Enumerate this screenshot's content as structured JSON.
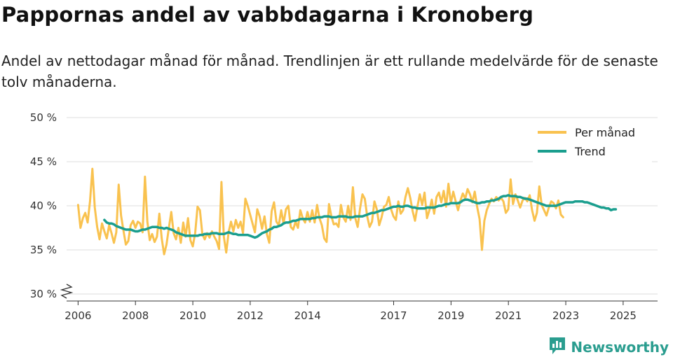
{
  "header": {
    "title": "Pappornas andel av vabbdagarna i Kronoberg",
    "subtitle": "Andel av nettodagar månad för månad. Trendlinjen är ett rullande medelvärde för de senaste tolv månaderna."
  },
  "brand": {
    "name": "Newsworthy",
    "icon": "newsworthy-logo-icon"
  },
  "colors": {
    "monthly": "#f9c24f",
    "trend": "#1a9e8e",
    "grid": "#dddddd",
    "axis": "#333333"
  },
  "chart_data": {
    "type": "line",
    "title": "Pappornas andel av vabbdagarna i Kronoberg",
    "ylabel": "",
    "xlabel": "",
    "ylim": [
      30,
      50
    ],
    "xlim": [
      2005.6,
      2026.2
    ],
    "y_ticks": [
      30,
      35,
      40,
      45,
      50
    ],
    "y_tick_labels": [
      "30 %",
      "35 %",
      "40 %",
      "45 %",
      "50 %"
    ],
    "x_ticks": [
      2006,
      2008,
      2010,
      2012,
      2014,
      2017,
      2019,
      2021,
      2023,
      2025
    ],
    "x_tick_labels": [
      "2006",
      "2008",
      "2010",
      "2012",
      "2014",
      "2017",
      "2019",
      "2021",
      "2023",
      "2025"
    ],
    "legend_position": "top-right",
    "series": [
      {
        "name": "Per månad",
        "x_start": 2006.0,
        "step": 0.0833,
        "values": [
          40.1,
          37.5,
          38.6,
          39.2,
          38.1,
          40.5,
          44.2,
          39.8,
          37.6,
          36.2,
          38.0,
          37.1,
          36.3,
          37.8,
          36.9,
          35.8,
          37.0,
          42.4,
          38.9,
          37.2,
          35.6,
          36.0,
          37.8,
          38.3,
          37.5,
          38.2,
          38.0,
          37.0,
          43.3,
          38.2,
          36.1,
          36.8,
          35.9,
          36.5,
          39.1,
          36.3,
          34.5,
          35.6,
          37.5,
          39.3,
          36.9,
          36.2,
          37.5,
          35.8,
          38.1,
          36.5,
          38.6,
          36.1,
          35.4,
          36.9,
          39.9,
          39.5,
          36.8,
          36.2,
          36.9,
          36.4,
          37.1,
          36.5,
          36.0,
          35.1,
          42.7,
          36.5,
          34.7,
          37.0,
          38.2,
          37.1,
          38.4,
          37.5,
          38.2,
          36.9,
          40.8,
          40.0,
          39.0,
          38.0,
          37.0,
          39.6,
          38.8,
          37.4,
          38.8,
          36.8,
          35.8,
          39.4,
          40.4,
          38.2,
          37.8,
          39.5,
          38.0,
          39.6,
          40.0,
          37.6,
          37.3,
          38.2,
          37.5,
          39.5,
          38.6,
          38.1,
          39.3,
          38.2,
          39.5,
          38.1,
          40.1,
          38.6,
          37.8,
          36.3,
          35.9,
          40.2,
          38.8,
          37.9,
          38.0,
          37.6,
          40.1,
          38.7,
          38.2,
          40.0,
          38.4,
          42.1,
          38.6,
          37.6,
          39.7,
          41.3,
          40.8,
          38.8,
          37.6,
          38.2,
          40.5,
          39.6,
          37.8,
          38.7,
          39.9,
          40.1,
          41.0,
          39.6,
          38.8,
          38.4,
          40.5,
          39.1,
          39.5,
          41.0,
          42.0,
          40.9,
          39.4,
          38.3,
          39.9,
          41.3,
          40.1,
          41.5,
          38.6,
          39.5,
          40.7,
          39.1,
          41.0,
          41.5,
          40.4,
          41.7,
          39.9,
          42.5,
          40.3,
          41.6,
          40.5,
          39.5,
          40.6,
          41.4,
          40.8,
          41.9,
          41.3,
          40.4,
          41.6,
          39.9,
          38.5,
          35.0,
          38.3,
          39.5,
          40.2,
          40.8,
          40.5,
          41.0,
          40.6,
          40.9,
          40.5,
          39.2,
          39.6,
          43.0,
          40.2,
          41.3,
          40.6,
          39.8,
          40.6,
          40.9,
          40.5,
          41.2,
          39.5,
          38.3,
          39.2,
          42.2,
          40.1,
          39.5,
          38.9,
          39.8,
          40.5,
          40.3,
          39.7,
          40.6,
          39.0,
          38.7
        ]
      },
      {
        "name": "Trend",
        "x_start": 2006.9167,
        "step": 0.0833,
        "values": [
          38.4,
          38.1,
          38.0,
          38.0,
          37.9,
          37.7,
          37.6,
          37.5,
          37.4,
          37.3,
          37.3,
          37.3,
          37.2,
          37.1,
          37.1,
          37.2,
          37.3,
          37.3,
          37.4,
          37.5,
          37.6,
          37.6,
          37.6,
          37.5,
          37.5,
          37.4,
          37.5,
          37.4,
          37.3,
          37.2,
          37.0,
          36.9,
          36.8,
          36.7,
          36.6,
          36.6,
          36.6,
          36.6,
          36.6,
          36.6,
          36.7,
          36.7,
          36.8,
          36.8,
          36.8,
          36.9,
          36.9,
          36.9,
          36.8,
          36.8,
          36.8,
          36.9,
          37.0,
          36.9,
          36.8,
          36.8,
          36.7,
          36.7,
          36.7,
          36.7,
          36.7,
          36.6,
          36.5,
          36.4,
          36.5,
          36.7,
          36.9,
          37.0,
          37.1,
          37.3,
          37.4,
          37.6,
          37.6,
          37.7,
          37.8,
          38.0,
          38.1,
          38.1,
          38.2,
          38.3,
          38.3,
          38.4,
          38.5,
          38.5,
          38.5,
          38.5,
          38.5,
          38.6,
          38.6,
          38.7,
          38.7,
          38.7,
          38.8,
          38.8,
          38.8,
          38.7,
          38.7,
          38.7,
          38.8,
          38.8,
          38.8,
          38.8,
          38.7,
          38.7,
          38.7,
          38.8,
          38.8,
          38.8,
          38.8,
          38.9,
          39.0,
          39.1,
          39.2,
          39.2,
          39.3,
          39.4,
          39.5,
          39.5,
          39.6,
          39.7,
          39.8,
          39.9,
          39.9,
          40.0,
          39.9,
          39.9,
          40.0,
          40.0,
          39.9,
          39.8,
          39.8,
          39.7,
          39.7,
          39.7,
          39.7,
          39.8,
          39.8,
          39.8,
          39.8,
          39.9,
          40.0,
          40.0,
          40.1,
          40.2,
          40.2,
          40.3,
          40.3,
          40.3,
          40.3,
          40.4,
          40.6,
          40.7,
          40.7,
          40.6,
          40.5,
          40.4,
          40.3,
          40.3,
          40.4,
          40.4,
          40.5,
          40.5,
          40.6,
          40.6,
          40.7,
          40.8,
          41.0,
          41.1,
          41.1,
          41.2,
          41.1,
          41.1,
          41.1,
          41.0,
          41.0,
          40.9,
          40.8,
          40.8,
          40.7,
          40.6,
          40.5,
          40.4,
          40.3,
          40.2,
          40.1,
          40.0,
          40.0,
          40.0,
          40.0,
          40.0,
          40.1,
          40.2,
          40.3,
          40.4,
          40.4,
          40.4,
          40.4,
          40.5,
          40.5,
          40.5,
          40.5,
          40.4,
          40.4,
          40.3,
          40.2,
          40.1,
          40.0,
          39.9,
          39.8,
          39.8,
          39.7,
          39.7,
          39.5,
          39.6,
          39.6
        ]
      }
    ]
  }
}
